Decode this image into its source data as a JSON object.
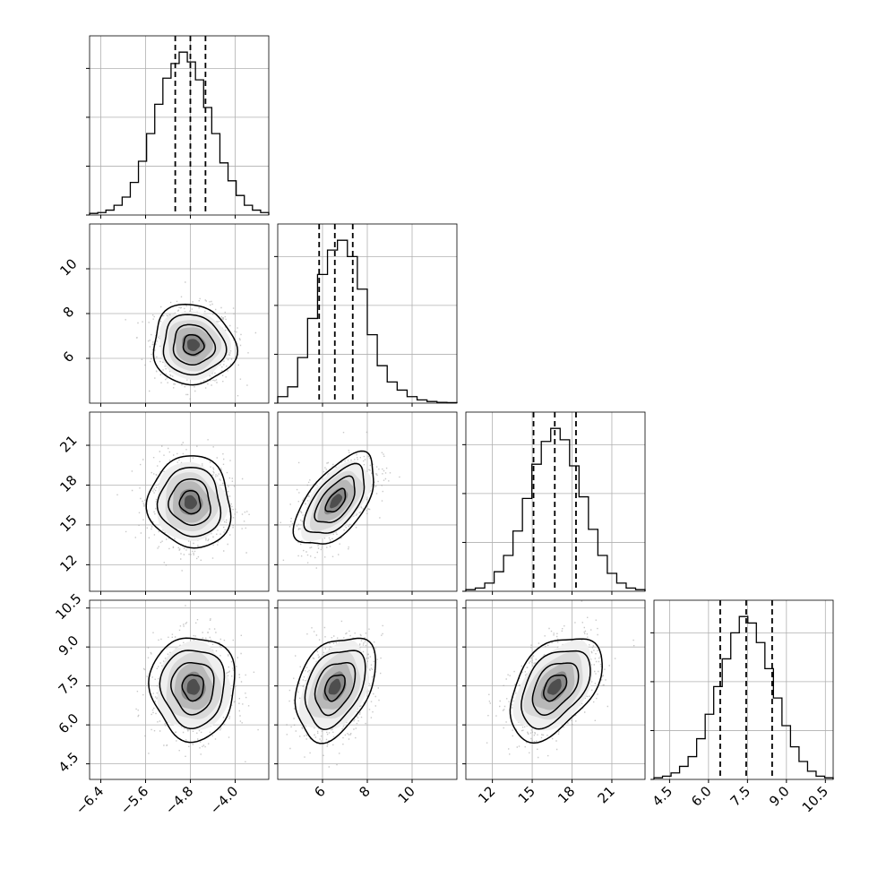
{
  "chart_data": {
    "type": "corner",
    "grid": true,
    "parameters": [
      {
        "range": [
          -6.6,
          -3.4
        ],
        "ticks": [
          -6.4,
          -5.6,
          -4.8,
          -4.0
        ],
        "tick_labels": [
          "−6.4",
          "−5.6",
          "−4.8",
          "−4.0"
        ],
        "quantiles": [
          -5.07,
          -4.8,
          -4.53
        ],
        "hist": [
          1,
          1.5,
          3,
          6,
          11,
          20,
          33,
          50,
          68,
          84,
          93,
          100,
          94,
          83,
          66,
          50,
          32,
          21,
          12,
          6,
          3,
          1.5
        ]
      },
      {
        "range": [
          4.0,
          12.0
        ],
        "ticks": [
          6,
          8,
          10
        ],
        "tick_labels": [
          "6",
          "8",
          "10"
        ],
        "quantiles": [
          5.85,
          6.55,
          7.35
        ],
        "hist": [
          4,
          10,
          28,
          52,
          79,
          94,
          100,
          90,
          70,
          42,
          23,
          13,
          8,
          4,
          2,
          1,
          0.5,
          0.3
        ]
      },
      {
        "range": [
          10.0,
          23.5
        ],
        "ticks": [
          12,
          15,
          18,
          21
        ],
        "tick_labels": [
          "12",
          "15",
          "18",
          "21"
        ],
        "quantiles": [
          15.1,
          16.7,
          18.3
        ],
        "hist": [
          1,
          2,
          5,
          12,
          22,
          37,
          57,
          78,
          92,
          100,
          93,
          77,
          58,
          38,
          22,
          11,
          5,
          2,
          1
        ]
      },
      {
        "range": [
          3.9,
          10.8
        ],
        "ticks": [
          4.5,
          6.0,
          7.5,
          9.0,
          10.5
        ],
        "tick_labels": [
          "4.5",
          "6.0",
          "7.5",
          "9.0",
          "10.5"
        ],
        "quantiles": [
          6.45,
          7.45,
          8.45
        ],
        "hist": [
          1,
          2,
          4,
          8,
          14,
          25,
          40,
          57,
          74,
          90,
          100,
          96,
          84,
          68,
          50,
          33,
          20,
          11,
          5,
          2,
          1
        ]
      }
    ],
    "pairs": [
      {
        "row": 1,
        "col": 0,
        "mean": [
          -4.75,
          6.6
        ],
        "sd": [
          0.35,
          0.85
        ],
        "rho": -0.05
      },
      {
        "row": 2,
        "col": 0,
        "mean": [
          -4.8,
          16.7
        ],
        "sd": [
          0.35,
          1.65
        ],
        "rho": -0.05
      },
      {
        "row": 2,
        "col": 1,
        "mean": [
          6.6,
          16.8
        ],
        "sd": [
          0.85,
          1.65
        ],
        "rho": 0.58
      },
      {
        "row": 3,
        "col": 0,
        "mean": [
          -4.75,
          7.45
        ],
        "sd": [
          0.36,
          0.95
        ],
        "rho": 0.0
      },
      {
        "row": 3,
        "col": 1,
        "mean": [
          6.55,
          7.45
        ],
        "sd": [
          0.85,
          0.95
        ],
        "rho": 0.35
      },
      {
        "row": 3,
        "col": 2,
        "mean": [
          16.7,
          7.45
        ],
        "sd": [
          1.65,
          0.95
        ],
        "rho": 0.45
      }
    ],
    "contour_levels_sigma": [
      0.5,
      1.0,
      1.5,
      2.0
    ]
  }
}
